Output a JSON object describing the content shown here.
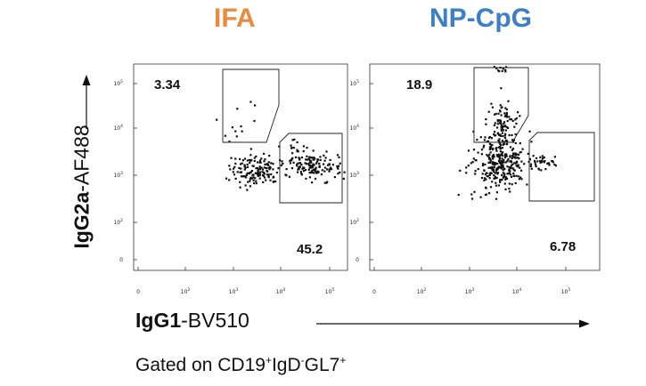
{
  "chart_data": [
    {
      "type": "scatter",
      "title": "IFA",
      "title_color": "#e98a3c",
      "xlabel": "IgG1-BV510",
      "ylabel": "IgG2a-AF488",
      "x_ticks": [
        "0",
        "10^2",
        "10^3",
        "10^4",
        "10^5"
      ],
      "y_ticks": [
        "0",
        "10^2",
        "10^3",
        "10^4",
        "10^5"
      ],
      "gates": [
        {
          "name": "IgG2a+ gate",
          "percent": "3.34",
          "label_position": "top-left"
        },
        {
          "name": "IgG1+ gate",
          "percent": "45.2",
          "label_position": "bottom-right"
        }
      ]
    },
    {
      "type": "scatter",
      "title": "NP-CpG",
      "title_color": "#3d7fc4",
      "xlabel": "IgG1-BV510",
      "ylabel": "IgG2a-AF488",
      "x_ticks": [
        "0",
        "10^2",
        "10^3",
        "10^4",
        "10^5"
      ],
      "y_ticks": [
        "0",
        "10^2",
        "10^3",
        "10^4",
        "10^5"
      ],
      "gates": [
        {
          "name": "IgG2a+ gate",
          "percent": "18.9",
          "label_position": "top-left"
        },
        {
          "name": "IgG1+ gate",
          "percent": "6.78",
          "label_position": "bottom-right"
        }
      ]
    }
  ],
  "axes": {
    "x_label_bold": "IgG1",
    "x_label_rest": "-BV510",
    "y_label_bold": "IgG2a",
    "y_label_rest": "-AF488"
  },
  "caption": {
    "prefix": "Gated on CD19",
    "sup1": "+",
    "mid1": "IgD",
    "sup2": "-",
    "mid2": "GL7",
    "sup3": "+"
  }
}
